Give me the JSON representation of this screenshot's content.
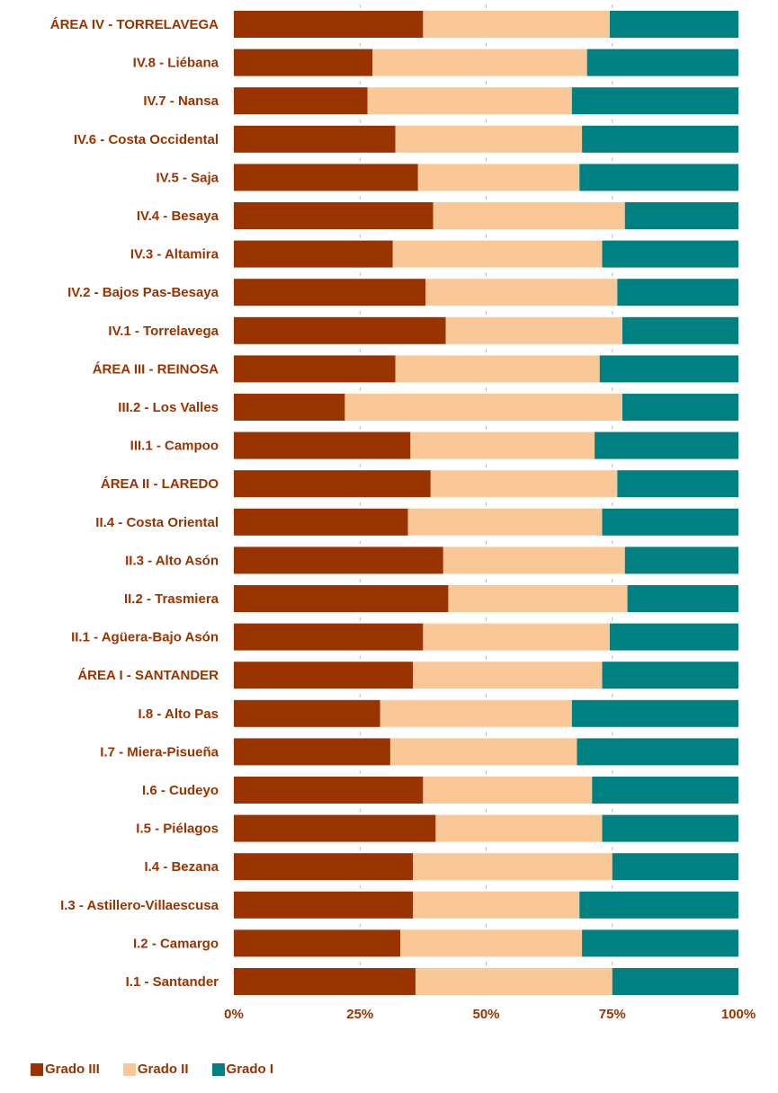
{
  "chart_data": {
    "type": "bar",
    "orientation": "horizontal",
    "stacked": "percent",
    "categories": [
      "ÁREA IV - TORRELAVEGA",
      "IV.8 - Liébana",
      "IV.7 - Nansa",
      "IV.6 - Costa Occidental",
      "IV.5 - Saja",
      "IV.4 - Besaya",
      "IV.3 - Altamira",
      "IV.2 - Bajos Pas-Besaya",
      "IV.1 - Torrelavega",
      "ÁREA III - REINOSA",
      "III.2 - Los Valles",
      "III.1 - Campoo",
      "ÁREA II - LAREDO",
      "II.4 - Costa Oriental",
      "II.3 - Alto Asón",
      "II.2 - Trasmiera",
      "II.1 - Agüera-Bajo Asón",
      "ÁREA I - SANTANDER",
      "I.8 - Alto Pas",
      "I.7 - Miera-Pisueña",
      "I.6 - Cudeyo",
      "I.5 - Piélagos",
      "I.4 - Bezana",
      "I.3 - Astillero-Villaescusa",
      "I.2 - Camargo",
      "I.1 - Santander"
    ],
    "series": [
      {
        "name": "Grado III",
        "color": "#993300",
        "values": [
          37.5,
          27.5,
          26.5,
          32,
          36.5,
          39.5,
          31.5,
          38,
          42,
          32,
          22,
          35,
          39,
          34.5,
          41.5,
          42.5,
          37.5,
          35.5,
          29,
          31,
          37.5,
          40,
          35.5,
          35.5,
          33,
          36
        ]
      },
      {
        "name": "Grado II",
        "color": "#fac896",
        "values": [
          37,
          42.5,
          40.5,
          37,
          32,
          38,
          41.5,
          38,
          35,
          40.5,
          55,
          36.5,
          37,
          38.5,
          36,
          35.5,
          37,
          37.5,
          38,
          37,
          33.5,
          33,
          39.5,
          33,
          36,
          39
        ]
      },
      {
        "name": "Grado I",
        "color": "#008080",
        "values": [
          25.5,
          30,
          33,
          31,
          31.5,
          22.5,
          27,
          24,
          23,
          27.5,
          23,
          28.5,
          24,
          27,
          22.5,
          22,
          25.5,
          27,
          33,
          32,
          29,
          27,
          25,
          31.5,
          31,
          25
        ]
      }
    ],
    "x_ticks": [
      "0%",
      "25%",
      "50%",
      "75%",
      "100%"
    ],
    "xlim": [
      0,
      100
    ],
    "grid": false,
    "legend_position": "bottom-left"
  }
}
